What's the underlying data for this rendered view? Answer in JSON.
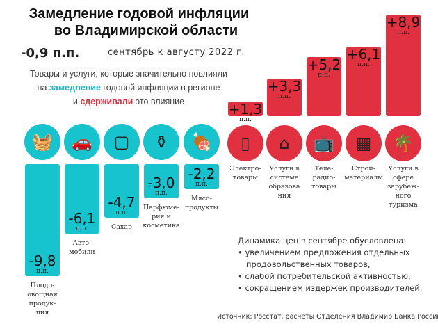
{
  "header": {
    "title_line1": "Замедление годовой инфляции",
    "title_line2": "во Владимирской области",
    "delta": "-0,9 п.п.",
    "period": "сентябрь к августу 2022 г."
  },
  "subtitle": {
    "line1": "Товары и услуги, которые значительно повлияли",
    "line2_a": "на ",
    "line2_b": "замедление",
    "line2_c": " годовой инфляции в  регионе",
    "line3_a": "и ",
    "line3_b": "сдерживали",
    "line3_c": " это влияние"
  },
  "unit": "п.п.",
  "chart_data": {
    "type": "bar",
    "unit": "п.п.",
    "categories": [
      "Плодо-овощная продук-ция",
      "Авто-мобили",
      "Сахар",
      "Парфюме-рия и косметика",
      "Мясо-продукты",
      "Электро-товары",
      "Услуги в системе образова ния",
      "Теле-радио-товары",
      "Строй-материалы",
      "Услуги в сфере зарубеж-ного туризма"
    ],
    "values": [
      -9.8,
      -6.1,
      -4.7,
      -3.0,
      -2.2,
      1.3,
      3.3,
      5.2,
      6.1,
      8.9
    ],
    "value_labels": [
      "-9,8",
      "-6,1",
      "-4,7",
      "-3,0",
      "-2,2",
      "+1,3",
      "+3,3",
      "+5,2",
      "+6,1",
      "+8,9"
    ],
    "icons": [
      "basket-icon",
      "car-icon",
      "sugar-icon",
      "lotion-icon",
      "meat-icon",
      "fridge-icon",
      "school-icon",
      "tv-icon",
      "bricks-icon",
      "palm-icon"
    ],
    "colors": {
      "negative": "#17c3cc",
      "positive": "#e1303f"
    }
  },
  "notes": {
    "heading": "Динамика цен в сентябре обусловлена:",
    "items": [
      "увеличением предложения отдельных",
      "продовольственных товаров,",
      "слабой потребительской активностью,",
      "сокращением издержек производителей."
    ]
  },
  "source": "Источник: Росстат, расчеты Отделения Владимир Банка России"
}
